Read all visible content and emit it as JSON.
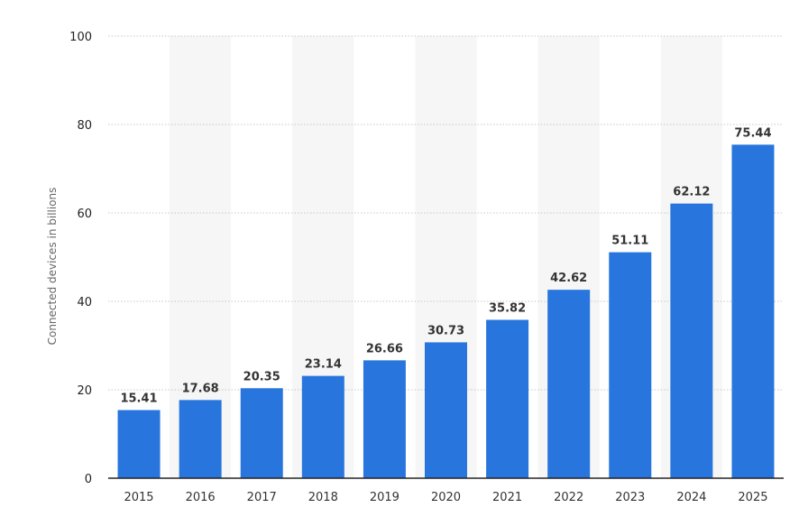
{
  "chart_data": {
    "type": "bar",
    "categories": [
      "2015",
      "2016",
      "2017",
      "2018",
      "2019",
      "2020",
      "2021",
      "2022",
      "2023",
      "2024",
      "2025"
    ],
    "values": [
      15.41,
      17.68,
      20.35,
      23.14,
      26.66,
      30.73,
      35.82,
      42.62,
      51.11,
      62.12,
      75.44
    ],
    "value_labels": [
      "15.41",
      "17.68",
      "20.35",
      "23.14",
      "26.66",
      "30.73",
      "35.82",
      "42.62",
      "51.11",
      "62.12",
      "75.44"
    ],
    "ylabel": "Connected devices in billions",
    "xlabel": "",
    "ylim": [
      0,
      100
    ],
    "yticks": [
      0,
      20,
      40,
      60,
      80,
      100
    ],
    "ytick_labels": [
      "0",
      "20",
      "40",
      "60",
      "80",
      "100"
    ],
    "grid": "horizontal dotted",
    "alternate_column_shading": true,
    "colors": {
      "bar": "#2876DD",
      "grid": "#c8c8c8",
      "shade": "#f6f6f6",
      "axis": "#222222"
    }
  }
}
